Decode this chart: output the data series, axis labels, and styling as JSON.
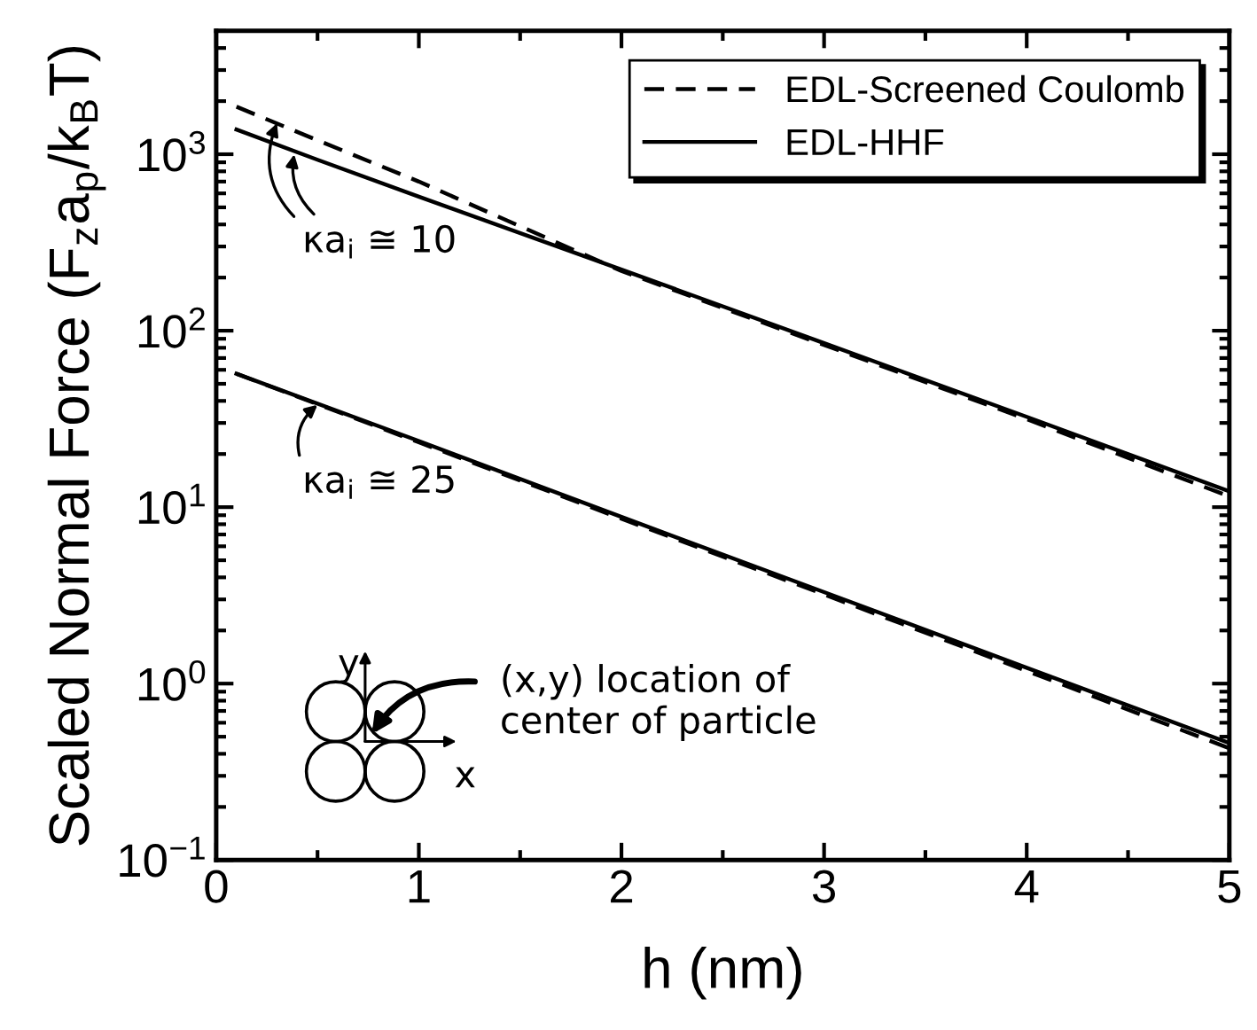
{
  "chart_data": {
    "type": "line",
    "xlabel": "h (nm)",
    "ylabel": "Scaled Normal Force (F$_{z}$a$_{p}$/k$_{B}$T)",
    "log": "y",
    "xlim": [
      0,
      5
    ],
    "ylim": [
      0.1,
      5000
    ],
    "xticks": [
      0,
      1,
      2,
      3,
      4,
      5
    ],
    "yticks": [
      {
        "value": 0.1,
        "label": "10$^{−1}$"
      },
      {
        "value": 1,
        "label": "10$^{0}$"
      },
      {
        "value": 10,
        "label": "10$^{1}$"
      },
      {
        "value": 100,
        "label": "10$^{2}$"
      },
      {
        "value": 1000,
        "label": "10$^{3}$"
      }
    ],
    "legend": "top right",
    "grid": false,
    "marker": "none",
    "series": [
      {
        "name": "EDL-Screened Coulomb",
        "color": "#000000",
        "line_style": "dashed",
        "x": [
          0.1,
          0.5,
          1,
          2,
          3,
          4,
          5
        ],
        "values": [
          1860,
          1200,
          700,
          218,
          83,
          31.5,
          11.5
        ]
      },
      {
        "name": "EDL-HHF",
        "color": "#000000",
        "line_style": "solid",
        "x": [
          0.1,
          0.5,
          1,
          2,
          3,
          4,
          5
        ],
        "values": [
          1380,
          930,
          575,
          222,
          85,
          32.5,
          12.3
        ]
      },
      {
        "color": "#000000",
        "line_style": "dashed",
        "x": [
          0.1,
          1,
          2,
          3,
          4,
          5
        ],
        "values": [
          57,
          23.3,
          8.6,
          3.2,
          1.18,
          0.43
        ]
      },
      {
        "color": "#000000",
        "line_style": "solid",
        "x": [
          0.1,
          1,
          2,
          3,
          4,
          5
        ],
        "values": [
          57,
          23.7,
          8.8,
          3.3,
          1.23,
          0.46
        ]
      }
    ],
    "annotations": [
      {
        "text": "κa$_{i}$ ≅ 10",
        "x": 0.3,
        "y": 1500
      },
      {
        "text": "κa$_{i}$ ≅ 25",
        "x": 0.5,
        "y": 38
      },
      "(x,y) location of\ncenter of particle",
      "y",
      "x"
    ]
  }
}
